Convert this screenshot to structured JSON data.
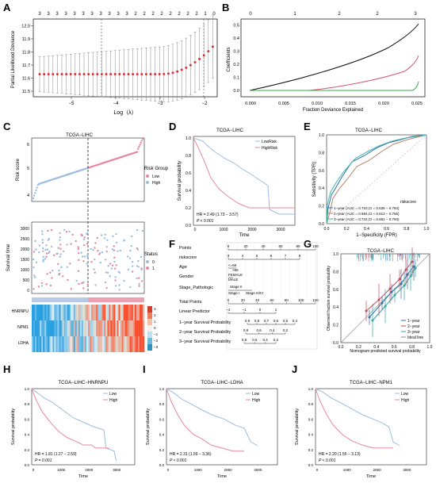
{
  "panels": {
    "A": {
      "label": "A",
      "top_counts": [
        "3",
        "3",
        "3",
        "3",
        "3",
        "3",
        "3",
        "3",
        "3",
        "3",
        "3",
        "2",
        "2",
        "2",
        "2",
        "2",
        "2",
        "2",
        "2",
        "1",
        "0"
      ],
      "ylabel": "Partial Likelihood Deviance",
      "xlabel": "Log（λ）",
      "yticks": [
        "11.5",
        "11.6",
        "11.7",
        "11.8",
        "11.9",
        "12.0"
      ],
      "xticks": [
        "−5",
        "−4",
        "−3",
        "−2"
      ]
    },
    "B": {
      "label": "B",
      "top_ticks": [
        "0",
        "1",
        "2",
        "2",
        "3"
      ],
      "ylabel": "Coefficients",
      "xlabel": "Fraction Deviance Explained",
      "yticks": [
        "0.0",
        "0.1",
        "0.2",
        "0.3",
        "0.4",
        "0.5"
      ],
      "xticks": [
        "0.000",
        "0.005",
        "0.010",
        "0.015",
        "0.020",
        "0.025"
      ]
    },
    "C": {
      "label": "C",
      "title": "TCGA−LIHC",
      "risk_ylabel": "Risk score",
      "risk_yticks": [
        "4",
        "5",
        "6"
      ],
      "legend_title": "Risk Group",
      "legend_items": [
        "Low",
        "High"
      ],
      "surv_ylabel": "Survival time",
      "surv_yticks": [
        "0",
        "500",
        "1000",
        "1500",
        "2000",
        "2500",
        "3000"
      ],
      "status_title": "Status",
      "status_items": [
        "0",
        "1"
      ],
      "genes": [
        "HNRNPU",
        "NPM1",
        "LDHA"
      ],
      "heat_scale": [
        "3",
        "2",
        "1",
        "0",
        "−1",
        "−2",
        "−3"
      ]
    },
    "D": {
      "label": "D",
      "title": "TCGA−LIHC",
      "legend": [
        "LowRisk",
        "HighRisk"
      ],
      "ylabel": "Survival probability",
      "xlabel": "Time",
      "hr": "HR = 2.49 (1.73 − 3.57)",
      "p": "P < 0.001",
      "yticks": [
        "0.0",
        "0.2",
        "0.4",
        "0.6",
        "0.8",
        "1.0"
      ],
      "xticks": [
        "0",
        "1000",
        "2000",
        "3000"
      ]
    },
    "E": {
      "label": "E",
      "title": "TCGA−LIHC",
      "ylabel": "Sensitivity (TPR)",
      "xlabel": "1−Specificity (FPR)",
      "legend_title": "riskscore",
      "legend": [
        "1−year (AUC = 0.710,CI = 0.636 − 0.784)",
        "2−year (AUC = 0.684,CI = 0.612 − 0.756)",
        "3−year (AUC = 0.722,CI = 0.651 − 0.793)"
      ],
      "ticks": [
        "0.0",
        "0.2",
        "0.4",
        "0.6",
        "0.8",
        "1.0"
      ]
    },
    "F": {
      "label": "F",
      "rows": [
        "Points",
        "riskscore",
        "Age",
        "Gender",
        "Stage_Pathologic",
        "Total Points",
        "Linear Predictor",
        "1−year Survival Probability",
        "2−year Survival Probability",
        "3−year Survival Probability"
      ],
      "points_ticks": [
        "0",
        "20",
        "40",
        "60",
        "80",
        "100"
      ],
      "risk_ticks": [
        "3",
        "4",
        "5",
        "6",
        "7",
        "8"
      ],
      "age_labels": [
        "<=65",
        ">65"
      ],
      "gender_labels": [
        "FEMALE",
        "MALE"
      ],
      "stage_labels": [
        "Stage II",
        "Stage III/IV",
        "Stage I"
      ],
      "total_ticks": [
        "0",
        "20",
        "40",
        "60",
        "80",
        "100",
        "120"
      ],
      "lp_ticks": [
        "−2",
        "−1",
        "0",
        "1"
      ],
      "y1_ticks": [
        "0.9",
        "0.8",
        "0.7",
        "0.6",
        "0.5",
        "0.4"
      ],
      "y2_ticks": [
        "0.8",
        "0.6",
        "0.4",
        "0.2"
      ],
      "y3_ticks": [
        "0.8",
        "0.6",
        "0.4",
        "0.2"
      ]
    },
    "G": {
      "label": "G",
      "title": "TCGA−LIHC",
      "ylabel": "Observed fraction survival probability",
      "xlabel": "Nomogram predicted survival probability",
      "legend": [
        "1−year",
        "2−year",
        "3−year",
        "Ideal line"
      ],
      "ticks": [
        "0.0",
        "0.2",
        "0.4",
        "0.6",
        "0.8",
        "1.0"
      ]
    },
    "H": {
      "label": "H",
      "title": "TCGA−LIHC−HNRNPU",
      "legend": [
        "Low",
        "High"
      ],
      "ylabel": "Survival probability",
      "xlabel": "Time",
      "hr": "HR = 1.81 (1.27 − 2.59)",
      "p": "P = 0.001",
      "yticks": [
        "0.0",
        "0.2",
        "0.4",
        "0.6",
        "0.8",
        "1.0"
      ],
      "xticks": [
        "0",
        "1000",
        "2000",
        "3000"
      ]
    },
    "I": {
      "label": "I",
      "title": "TCGA−LIHC−LDHA",
      "legend": [
        "Low",
        "High"
      ],
      "ylabel": "Survival probability",
      "xlabel": "Time",
      "hr": "HR = 2.31 (1.59 − 3.36)",
      "p": "P < 0.001",
      "yticks": [
        "0.0",
        "0.2",
        "0.4",
        "0.6",
        "0.8",
        "1.0"
      ],
      "xticks": [
        "0",
        "1000",
        "2000",
        "3000"
      ]
    },
    "J": {
      "label": "J",
      "title": "TCGA−LIHC−NPM1",
      "legend": [
        "Low",
        "High"
      ],
      "ylabel": "Survival probability",
      "xlabel": "Time",
      "hr": "HR = 2.20 (1.55 − 3.13)",
      "p": "P < 0.001",
      "yticks": [
        "0.0",
        "0.2",
        "0.4",
        "0.6",
        "0.8",
        "1.0"
      ],
      "xticks": [
        "0",
        "1000",
        "2000",
        "3000"
      ]
    }
  },
  "colors": {
    "low": "#9dbde0",
    "high": "#e8889e",
    "roc1": "#2e6fa8",
    "roc2": "#b9806b",
    "roc3": "#3fb8b0",
    "lasso_red": "#d8333a"
  },
  "chart_data": [
    {
      "type": "line",
      "title": "",
      "xlabel": "Log（λ）",
      "ylabel": "Partial Likelihood Deviance",
      "x": [
        -5.8,
        -5.5,
        -5,
        -4.5,
        -4,
        -3.5,
        -3,
        -2.5,
        -2.2,
        -2,
        -1.8
      ],
      "y": [
        11.63,
        11.63,
        11.63,
        11.63,
        11.63,
        11.64,
        11.65,
        11.67,
        11.72,
        11.76,
        11.84
      ],
      "ylim": [
        11.45,
        12.05
      ]
    },
    {
      "type": "line",
      "title": "",
      "xlabel": "Fraction Deviance Explained",
      "ylabel": "Coefficients",
      "series": [
        {
          "values": [
            [
              0,
              0
            ],
            [
              0.01,
              0.17
            ],
            [
              0.02,
              0.33
            ],
            [
              0.026,
              0.5
            ]
          ]
        },
        {
          "values": [
            [
              0.0085,
              0
            ],
            [
              0.02,
              0.1
            ],
            [
              0.026,
              0.25
            ]
          ]
        },
        {
          "values": [
            [
              0.025,
              0
            ],
            [
              0.026,
              0.08
            ]
          ]
        }
      ],
      "ylim": [
        -0.05,
        0.55
      ]
    },
    {
      "type": "line",
      "title": "TCGA−LIHC",
      "xlabel": "Time",
      "ylabel": "Survival probability",
      "series": [
        {
          "name": "LowRisk",
          "values": [
            [
              0,
              1
            ],
            [
              500,
              0.88
            ],
            [
              1000,
              0.78
            ],
            [
              2000,
              0.65
            ],
            [
              2500,
              0.6
            ],
            [
              2600,
              0.2
            ]
          ]
        },
        {
          "name": "HighRisk",
          "values": [
            [
              0,
              1
            ],
            [
              500,
              0.65
            ],
            [
              1000,
              0.45
            ],
            [
              1500,
              0.33
            ],
            [
              2000,
              0.25
            ],
            [
              3500,
              0.25
            ]
          ]
        }
      ]
    },
    {
      "type": "line",
      "title": "TCGA−LIHC",
      "xlabel": "1−Specificity (FPR)",
      "ylabel": "Sensitivity (TPR)",
      "series": [
        {
          "name": "1−year (AUC = 0.710,CI = 0.636 − 0.784)"
        },
        {
          "name": "2−year (AUC = 0.684,CI = 0.612 − 0.756)"
        },
        {
          "name": "3−year (AUC = 0.722,CI = 0.651 − 0.793)"
        }
      ]
    },
    {
      "type": "line",
      "title": "TCGA−LIHC−HNRNPU",
      "xlabel": "Time",
      "ylabel": "Survival probability",
      "series": [
        {
          "name": "Low"
        },
        {
          "name": "High"
        }
      ]
    },
    {
      "type": "line",
      "title": "TCGA−LIHC−LDHA",
      "xlabel": "Time",
      "ylabel": "Survival probability",
      "series": [
        {
          "name": "Low"
        },
        {
          "name": "High"
        }
      ]
    },
    {
      "type": "line",
      "title": "TCGA−LIHC−NPM1",
      "xlabel": "Time",
      "ylabel": "Survival probability",
      "series": [
        {
          "name": "Low"
        },
        {
          "name": "High"
        }
      ]
    }
  ]
}
